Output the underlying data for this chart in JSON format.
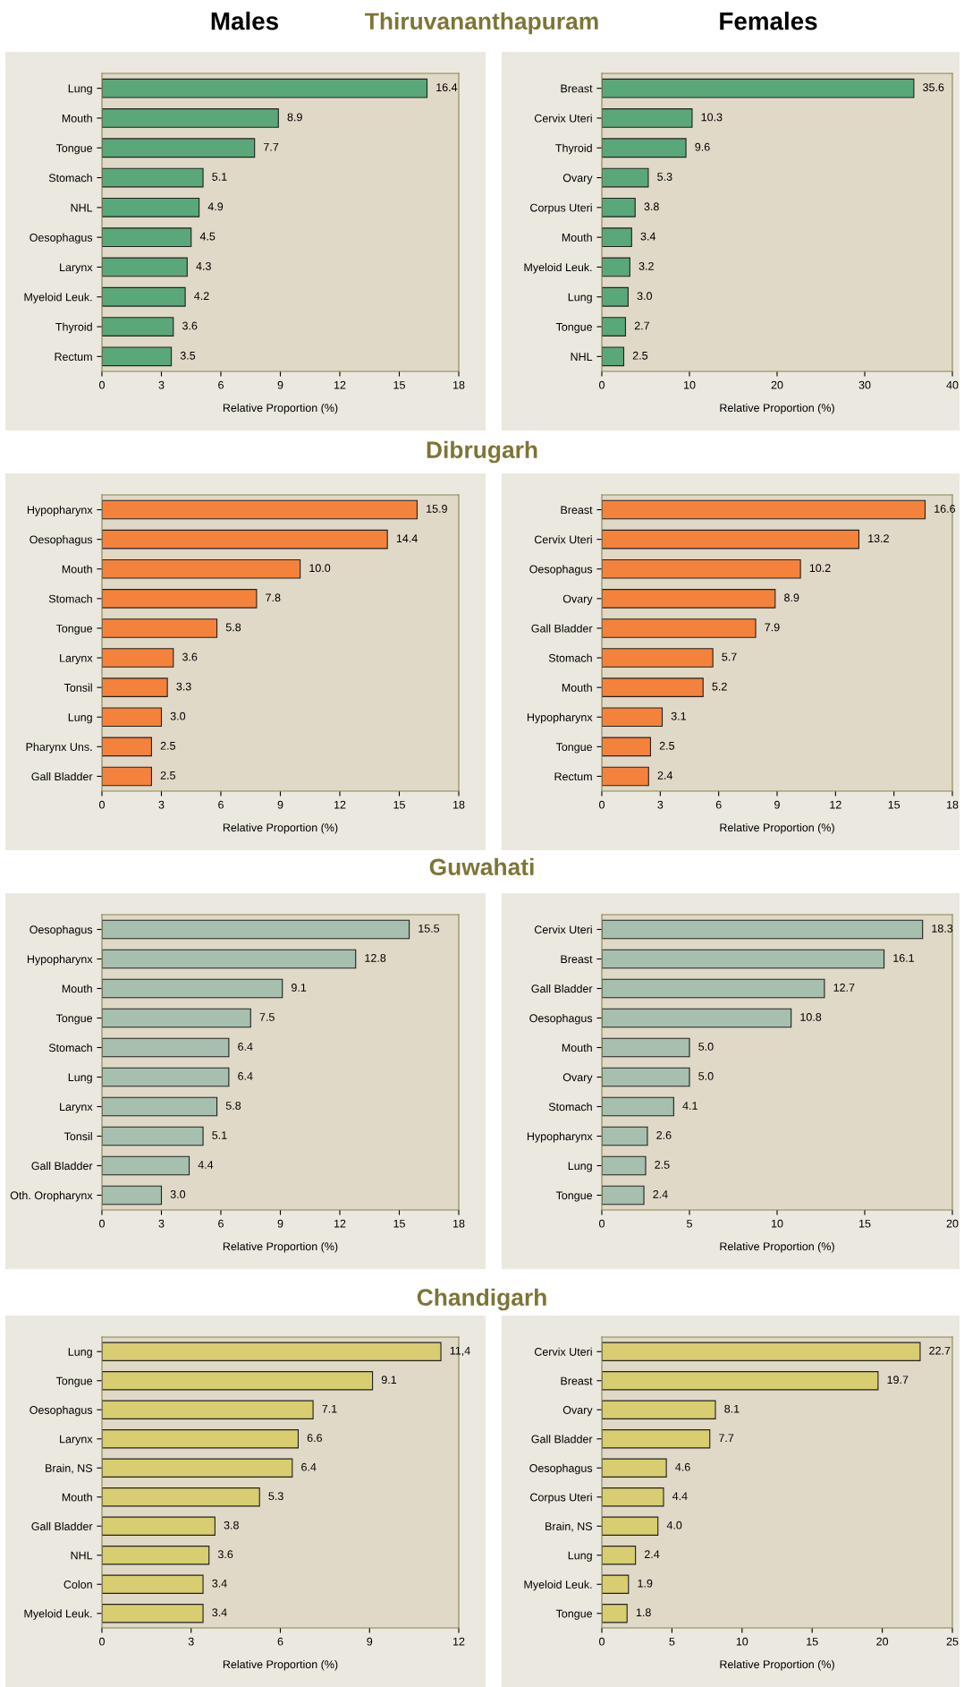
{
  "chart_data": [
    {
      "type": "bar",
      "orientation": "horizontal",
      "title": "Thiruvananthapuram",
      "annotations": [
        "Males"
      ],
      "xlabel": "Relative Proportion (%)",
      "categories": [
        "Lung",
        "Mouth",
        "Tongue",
        "Stomach",
        "NHL",
        "Oesophagus",
        "Larynx",
        "Myeloid Leuk.",
        "Thyroid",
        "Rectum"
      ],
      "values": [
        16.4,
        8.9,
        7.7,
        5.1,
        4.9,
        4.5,
        4.3,
        4.2,
        3.6,
        3.5
      ],
      "value_labels": [
        "16.4",
        "8.9",
        "7.7",
        "5.1",
        "4.9",
        "4.5",
        "4.3",
        "4.2",
        "3.6",
        "3.5"
      ],
      "color": "#5aa77a",
      "xlim": [
        0,
        18
      ],
      "xticks": [
        0,
        3,
        6,
        9,
        12,
        15,
        18
      ]
    },
    {
      "type": "bar",
      "orientation": "horizontal",
      "annotations": [
        "Females"
      ],
      "xlabel": "Relative Proportion (%)",
      "categories": [
        "Breast",
        "Cervix Uteri",
        "Thyroid",
        "Ovary",
        "Corpus Uteri",
        "Mouth",
        "Myeloid Leuk.",
        "Lung",
        "Tongue",
        "NHL"
      ],
      "values": [
        35.6,
        10.3,
        9.6,
        5.3,
        3.8,
        3.4,
        3.2,
        3.0,
        2.7,
        2.5
      ],
      "value_labels": [
        "35.6",
        "10.3",
        "9.6",
        "5.3",
        "3.8",
        "3.4",
        "3.2",
        "3.0",
        "2.7",
        "2.5"
      ],
      "color": "#5aa77a",
      "xlim": [
        0,
        40
      ],
      "xticks": [
        0,
        10,
        20,
        30,
        40
      ]
    },
    {
      "type": "bar",
      "orientation": "horizontal",
      "title": "Dibrugarh",
      "xlabel": "Relative Proportion (%)",
      "categories": [
        "Hypopharynx",
        "Oesophagus",
        "Mouth",
        "Stomach",
        "Tongue",
        "Larynx",
        "Tonsil",
        "Lung",
        "Pharynx Uns.",
        "Gall Bladder"
      ],
      "values": [
        15.9,
        14.4,
        10.0,
        7.8,
        5.8,
        3.6,
        3.3,
        3.0,
        2.5,
        2.5
      ],
      "value_labels": [
        "15.9",
        "14.4",
        "10.0",
        "7.8",
        "5.8",
        "3.6",
        "3.3",
        "3.0",
        "2.5",
        "2.5"
      ],
      "color": "#f5823c",
      "xlim": [
        0,
        18
      ],
      "xticks": [
        0,
        3,
        6,
        9,
        12,
        15,
        18
      ]
    },
    {
      "type": "bar",
      "orientation": "horizontal",
      "xlabel": "Relative Proportion (%)",
      "categories": [
        "Breast",
        "Cervix Uteri",
        "Oesophagus",
        "Ovary",
        "Gall Bladder",
        "Stomach",
        "Mouth",
        "Hypopharynx",
        "Tongue",
        "Rectum"
      ],
      "values": [
        16.6,
        13.2,
        10.2,
        8.9,
        7.9,
        5.7,
        5.2,
        3.1,
        2.5,
        2.4
      ],
      "value_labels": [
        "16.6",
        "13.2",
        "10.2",
        "8.9",
        "7.9",
        "5.7",
        "5.2",
        "3.1",
        "2.5",
        "2.4"
      ],
      "color": "#f5823c",
      "xlim": [
        0,
        18
      ],
      "xticks": [
        0,
        3,
        6,
        9,
        12,
        15,
        18
      ]
    },
    {
      "type": "bar",
      "orientation": "horizontal",
      "title": "Guwahati",
      "xlabel": "Relative Proportion (%)",
      "categories": [
        "Oesophagus",
        "Hypopharynx",
        "Mouth",
        "Tongue",
        "Stomach",
        "Lung",
        "Larynx",
        "Tonsil",
        "Gall Bladder",
        "Oth. Oropharynx"
      ],
      "values": [
        15.5,
        12.8,
        9.1,
        7.5,
        6.4,
        6.4,
        5.8,
        5.1,
        4.4,
        3.0
      ],
      "value_labels": [
        "15.5",
        "12.8",
        "9.1",
        "7.5",
        "6.4",
        "6.4",
        "5.8",
        "5.1",
        "4.4",
        "3.0"
      ],
      "color": "#a6bfae",
      "xlim": [
        0,
        18
      ],
      "xticks": [
        0,
        3,
        6,
        9,
        12,
        15,
        18
      ]
    },
    {
      "type": "bar",
      "orientation": "horizontal",
      "xlabel": "Relative Proportion (%)",
      "categories": [
        "Cervix Uteri",
        "Breast",
        "Gall Bladder",
        "Oesophagus",
        "Mouth",
        "Ovary",
        "Stomach",
        "Hypopharynx",
        "Lung",
        "Tongue"
      ],
      "values": [
        18.3,
        16.1,
        12.7,
        10.8,
        5.0,
        5.0,
        4.1,
        2.6,
        2.5,
        2.4
      ],
      "value_labels": [
        "18.3",
        "16.1",
        "12.7",
        "10.8",
        "5.0",
        "5.0",
        "4.1",
        "2.6",
        "2.5",
        "2.4"
      ],
      "color": "#a6bfae",
      "xlim": [
        0,
        20
      ],
      "xticks": [
        0,
        5,
        10,
        15,
        20
      ]
    },
    {
      "type": "bar",
      "orientation": "horizontal",
      "title": "Chandigarh",
      "xlabel": "Relative Proportion (%)",
      "categories": [
        "Lung",
        "Tongue",
        "Oesophagus",
        "Larynx",
        "Brain, NS",
        "Mouth",
        "Gall Bladder",
        "NHL",
        "Colon",
        "Myeloid Leuk."
      ],
      "values": [
        11.4,
        9.1,
        7.1,
        6.6,
        6.4,
        5.3,
        3.8,
        3.6,
        3.4,
        3.4
      ],
      "value_labels": [
        "11,4",
        "9.1",
        "7.1",
        "6.6",
        "6.4",
        "5.3",
        "3.8",
        "3.6",
        "3.4",
        "3.4"
      ],
      "color": "#d8cd70",
      "xlim": [
        0,
        12
      ],
      "xticks": [
        0,
        3,
        6,
        9,
        12
      ]
    },
    {
      "type": "bar",
      "orientation": "horizontal",
      "xlabel": "Relative Proportion (%)",
      "categories": [
        "Cervix Uteri",
        "Breast",
        "Ovary",
        "Gall Bladder",
        "Oesophagus",
        "Corpus Uteri",
        "Brain, NS",
        "Lung",
        "Myeloid Leuk.",
        "Tongue"
      ],
      "values": [
        22.7,
        19.7,
        8.1,
        7.7,
        4.6,
        4.4,
        4.0,
        2.4,
        1.9,
        1.8
      ],
      "value_labels": [
        "22.7",
        "19.7",
        "8.1",
        "7.7",
        "4.6",
        "4.4",
        "4.0",
        "2.4",
        "1.9",
        "1.8"
      ],
      "color": "#d8cd70",
      "xlim": [
        0,
        25
      ],
      "xticks": [
        0,
        5,
        10,
        15,
        20,
        25
      ]
    }
  ]
}
